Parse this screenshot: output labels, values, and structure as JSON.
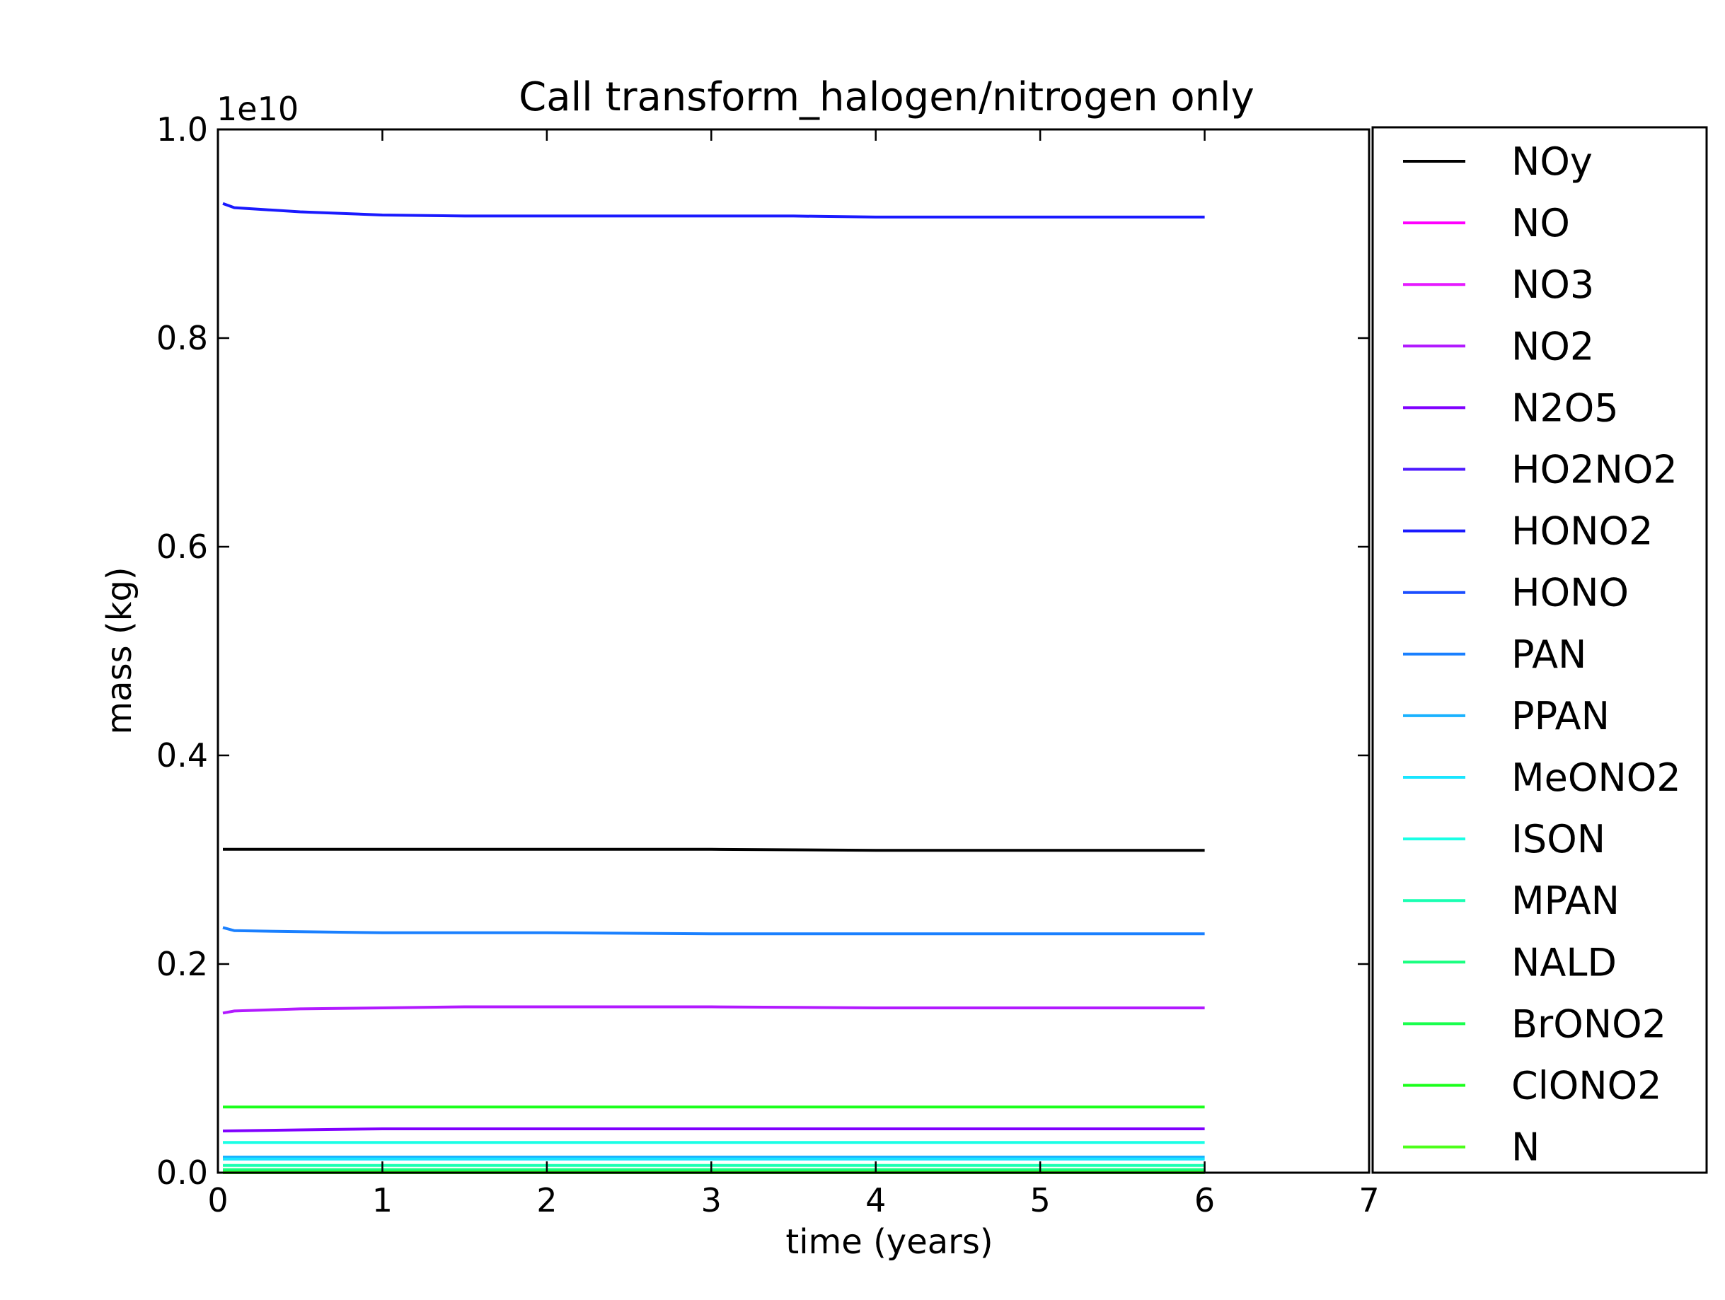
{
  "chart_data": {
    "type": "line",
    "title": "Call transform_halogen/nitrogen only",
    "xlabel": "time (years)",
    "ylabel": "mass (kg)",
    "y_offset_label": "1e10",
    "xlim": [
      0,
      7
    ],
    "ylim": [
      0,
      1.0
    ],
    "x_ticks": [
      0,
      1,
      2,
      3,
      4,
      5,
      6,
      7
    ],
    "x_tick_labels": [
      "0",
      "1",
      "2",
      "3",
      "4",
      "5",
      "6",
      "7"
    ],
    "y_ticks": [
      0.0,
      0.2,
      0.4,
      0.6,
      0.8,
      1.0
    ],
    "y_tick_labels": [
      "0.0",
      "0.2",
      "0.4",
      "0.6",
      "0.8",
      "1.0"
    ],
    "grid": false,
    "legend_position": "right",
    "series": [
      {
        "name": "NOy",
        "color": "#000000",
        "x": [
          0.03,
          0.5,
          1.0,
          2.0,
          3.0,
          4.0,
          5.0,
          6.0
        ],
        "values": [
          0.31,
          0.31,
          0.31,
          0.31,
          0.31,
          0.309,
          0.309,
          0.309
        ]
      },
      {
        "name": "NO",
        "color": "#ff00ff",
        "x": [
          0.03,
          6.0
        ],
        "values": [
          0.0,
          0.0
        ]
      },
      {
        "name": "NO3",
        "color": "#e51aff",
        "x": [
          0.03,
          6.0
        ],
        "values": [
          0.001,
          0.001
        ]
      },
      {
        "name": "NO2",
        "color": "#b21aff",
        "x": [
          0.03,
          0.1,
          0.5,
          1.0,
          1.5,
          2.0,
          3.0,
          4.0,
          5.0,
          6.0
        ],
        "values": [
          0.153,
          0.155,
          0.157,
          0.158,
          0.159,
          0.159,
          0.159,
          0.158,
          0.158,
          0.158
        ]
      },
      {
        "name": "N2O5",
        "color": "#8000ff",
        "x": [
          0.03,
          0.5,
          1.0,
          2.0,
          3.0,
          4.0,
          5.0,
          6.0
        ],
        "values": [
          0.04,
          0.041,
          0.042,
          0.042,
          0.042,
          0.042,
          0.042,
          0.042
        ]
      },
      {
        "name": "HO2NO2",
        "color": "#4d1aff",
        "x": [
          0.03,
          6.0
        ],
        "values": [
          0.002,
          0.002
        ]
      },
      {
        "name": "HONO2",
        "color": "#1a1aff",
        "x": [
          0.03,
          0.1,
          0.5,
          1.0,
          1.5,
          2.0,
          3.0,
          3.5,
          4.0,
          5.0,
          6.0
        ],
        "values": [
          0.929,
          0.925,
          0.921,
          0.918,
          0.917,
          0.917,
          0.917,
          0.917,
          0.916,
          0.916,
          0.916
        ]
      },
      {
        "name": "HONO",
        "color": "#1a4dff",
        "x": [
          0.03,
          6.0
        ],
        "values": [
          0.0,
          0.0
        ]
      },
      {
        "name": "PAN",
        "color": "#1a80ff",
        "x": [
          0.03,
          0.1,
          0.5,
          1.0,
          2.0,
          3.0,
          4.0,
          5.0,
          6.0
        ],
        "values": [
          0.235,
          0.232,
          0.231,
          0.23,
          0.23,
          0.229,
          0.229,
          0.229,
          0.229
        ]
      },
      {
        "name": "PPAN",
        "color": "#1ab2ff",
        "x": [
          0.03,
          6.0
        ],
        "values": [
          0.015,
          0.015
        ]
      },
      {
        "name": "MeONO2",
        "color": "#1ae5ff",
        "x": [
          0.03,
          6.0
        ],
        "values": [
          0.013,
          0.013
        ]
      },
      {
        "name": "ISON",
        "color": "#1affe5",
        "x": [
          0.03,
          6.0
        ],
        "values": [
          0.029,
          0.029
        ]
      },
      {
        "name": "MPAN",
        "color": "#1affb2",
        "x": [
          0.03,
          6.0
        ],
        "values": [
          0.007,
          0.007
        ]
      },
      {
        "name": "NALD",
        "color": "#1aff80",
        "x": [
          0.03,
          6.0
        ],
        "values": [
          0.003,
          0.003
        ]
      },
      {
        "name": "BrONO2",
        "color": "#1aff4d",
        "x": [
          0.03,
          6.0
        ],
        "values": [
          0.001,
          0.001
        ]
      },
      {
        "name": "ClONO2",
        "color": "#1aff1a",
        "x": [
          0.03,
          6.0
        ],
        "values": [
          0.063,
          0.063
        ]
      },
      {
        "name": "N",
        "color": "#4dff1a",
        "x": [
          0.03,
          6.0
        ],
        "values": [
          0.0,
          0.0
        ]
      }
    ]
  }
}
